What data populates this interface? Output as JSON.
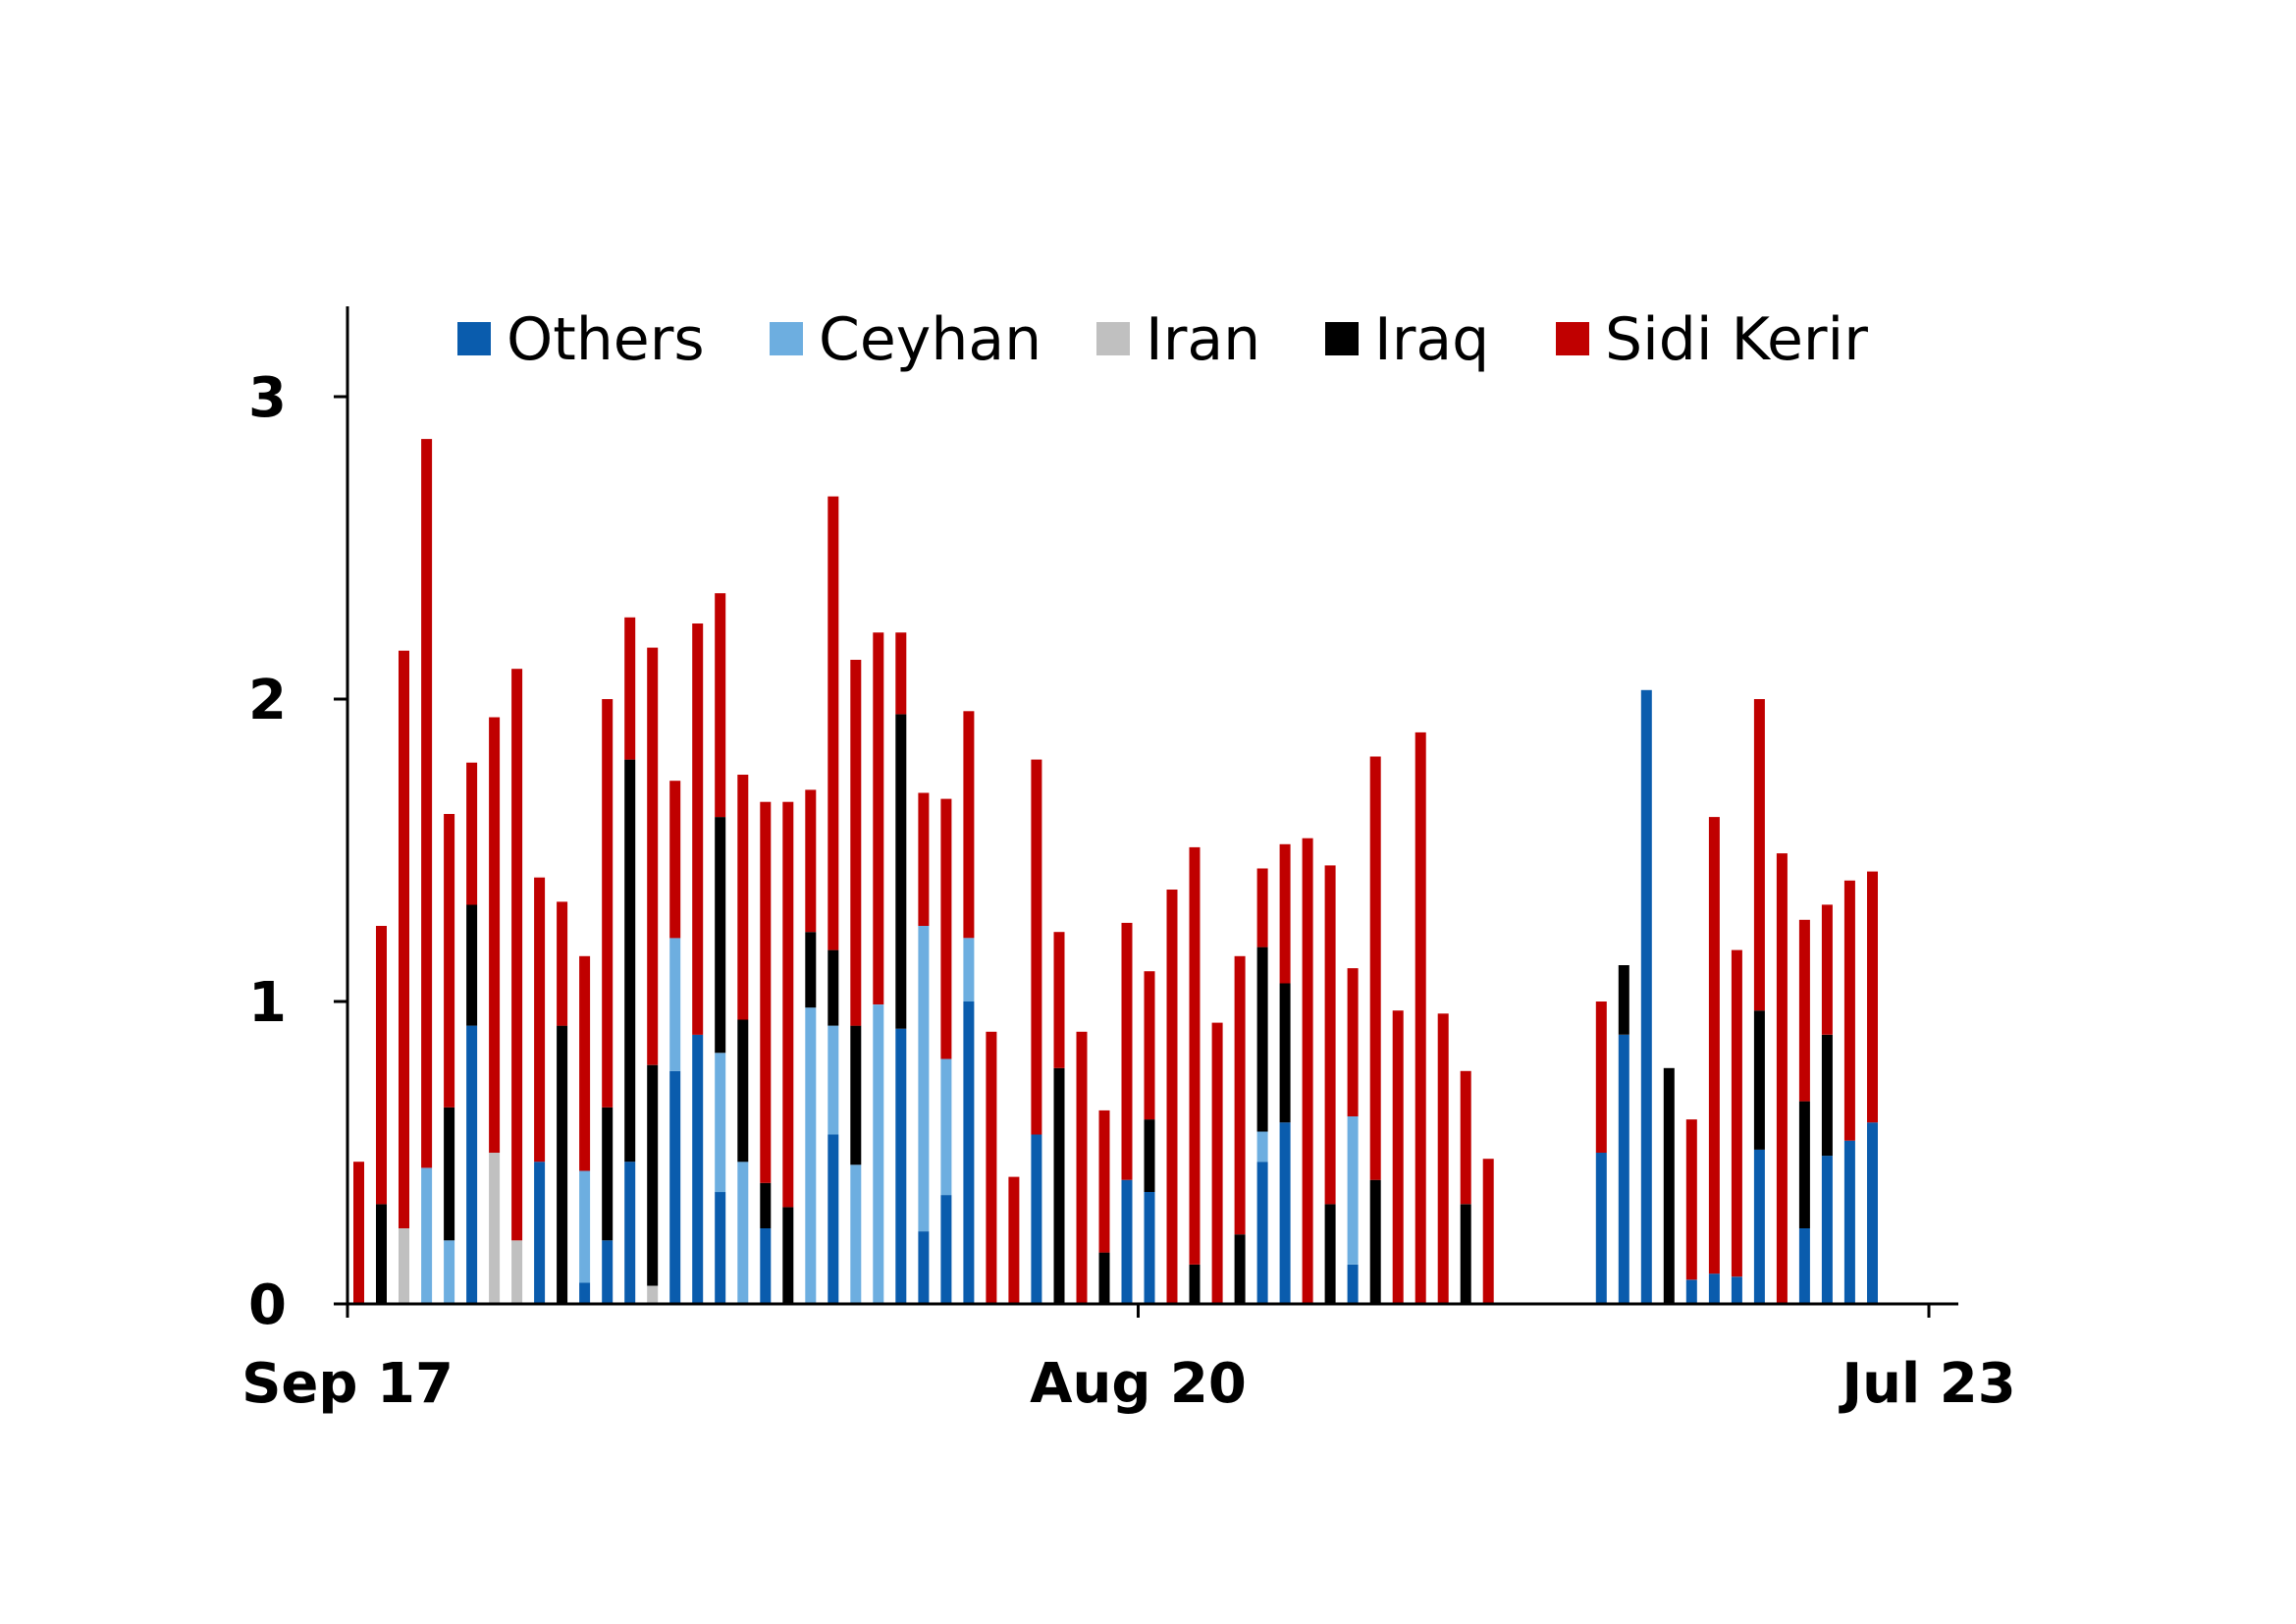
{
  "chart_data": {
    "type": "bar",
    "stacked": true,
    "title": "",
    "xlabel": "",
    "ylabel": "",
    "ylim": [
      0,
      3.3
    ],
    "yticks": [
      0,
      1,
      2,
      3
    ],
    "xlim": [
      0,
      70
    ],
    "xticks": [
      {
        "label": "Sep 17",
        "x": 0
      },
      {
        "label": "Aug 20",
        "x": 35
      },
      {
        "label": "Jul 23",
        "x": 70
      }
    ],
    "legend_position": "top",
    "grid": false,
    "series": [
      {
        "name": "Others",
        "color": "#0a5cad",
        "values": [
          0,
          0,
          0,
          0,
          0,
          0.92,
          0,
          0,
          0.47,
          0,
          0.07,
          0.21,
          0.47,
          0,
          0.77,
          0.89,
          0.37,
          0,
          0.25,
          0,
          0,
          0.56,
          0,
          0,
          0.91,
          0.24,
          0.36,
          1.0,
          0,
          0,
          0.56,
          0,
          0,
          0,
          0.41,
          0.37,
          0,
          0,
          0,
          0,
          0.47,
          0.6,
          0,
          0,
          0.13,
          0,
          0,
          0,
          0,
          0,
          0,
          0,
          0,
          0,
          0,
          0.5,
          0.89,
          2.03,
          0,
          0.08,
          0.1,
          0.09,
          0.51,
          0,
          0.25,
          0.49,
          0.54,
          0.6
        ]
      },
      {
        "name": "Ceyhan",
        "color": "#6daee0",
        "values": [
          0,
          0,
          0,
          0.45,
          0.21,
          0,
          0,
          0,
          0,
          0,
          0.37,
          0,
          0,
          0,
          0.44,
          0,
          0.46,
          0.47,
          0,
          0,
          0.98,
          0.36,
          0.46,
          0.99,
          0,
          1.01,
          0.45,
          0.21,
          0,
          0,
          0,
          0,
          0,
          0,
          0,
          0,
          0,
          0,
          0,
          0,
          0.1,
          0,
          0,
          0,
          0.49,
          0,
          0,
          0,
          0,
          0,
          0,
          0,
          0,
          0,
          0,
          0,
          0,
          0,
          0,
          0,
          0,
          0,
          0,
          0,
          0,
          0,
          0,
          0
        ]
      },
      {
        "name": "Iran",
        "color": "#c0c0c0",
        "values": [
          0,
          0,
          0.25,
          0,
          0,
          0,
          0.5,
          0.21,
          0,
          0,
          0,
          0,
          0,
          0.06,
          0,
          0,
          0,
          0,
          0,
          0,
          0,
          0,
          0,
          0,
          0,
          0,
          0,
          0,
          0,
          0,
          0,
          0,
          0,
          0,
          0,
          0,
          0,
          0,
          0,
          0,
          0,
          0,
          0,
          0,
          0,
          0,
          0,
          0,
          0,
          0,
          0,
          0,
          0,
          0,
          0,
          0,
          0,
          0,
          0,
          0,
          0,
          0,
          0,
          0,
          0,
          0,
          0,
          0
        ]
      },
      {
        "name": "Iraq",
        "color": "#000000",
        "values": [
          0,
          0.33,
          0,
          0,
          0.44,
          0.4,
          0,
          0,
          0,
          0.92,
          0,
          0.44,
          1.33,
          0.73,
          0,
          0,
          0.78,
          0.47,
          0.15,
          0.32,
          0.25,
          0.25,
          0.46,
          0,
          1.04,
          0,
          0,
          0,
          0,
          0,
          0,
          0.78,
          0,
          0.17,
          0,
          0.24,
          0,
          0.13,
          0,
          0.23,
          0.61,
          0.46,
          0,
          0.33,
          0,
          0.41,
          0,
          0,
          0,
          0.33,
          0,
          0,
          0,
          0,
          0,
          0,
          0.23,
          0,
          0.78,
          0,
          0,
          0,
          0.46,
          0,
          0.42,
          0.4,
          0,
          0
        ]
      },
      {
        "name": "Sidi Kerir",
        "color": "#c00000",
        "values": [
          0.47,
          0.92,
          1.91,
          2.41,
          0.97,
          0.47,
          1.44,
          1.89,
          0.94,
          0.41,
          0.71,
          1.35,
          0.47,
          1.38,
          0.52,
          1.36,
          0.74,
          0.81,
          1.26,
          1.34,
          0.47,
          1.5,
          1.21,
          1.23,
          0.27,
          0.44,
          0.86,
          0.75,
          0.9,
          0.42,
          1.24,
          0.45,
          0.9,
          0.47,
          0.85,
          0.49,
          1.37,
          1.38,
          0.93,
          0.92,
          0.26,
          0.46,
          1.54,
          1.12,
          0.49,
          1.4,
          0.97,
          1.89,
          0.96,
          0.44,
          0.48,
          0,
          0,
          0,
          0,
          0.5,
          0,
          0,
          0,
          0.53,
          1.51,
          1.08,
          1.03,
          1.49,
          0.6,
          0.43,
          0.86,
          0.83
        ]
      }
    ]
  },
  "axis": {
    "color": "#000000"
  }
}
